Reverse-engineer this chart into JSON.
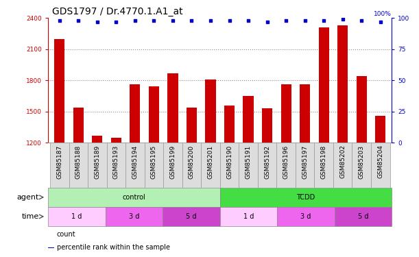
{
  "title": "GDS1797 / Dr.4770.1.A1_at",
  "samples": [
    "GSM85187",
    "GSM85188",
    "GSM85189",
    "GSM85193",
    "GSM85194",
    "GSM85195",
    "GSM85199",
    "GSM85200",
    "GSM85201",
    "GSM85190",
    "GSM85191",
    "GSM85192",
    "GSM85196",
    "GSM85197",
    "GSM85198",
    "GSM85202",
    "GSM85203",
    "GSM85204"
  ],
  "counts": [
    2200,
    1540,
    1270,
    1250,
    1760,
    1740,
    1870,
    1540,
    1810,
    1555,
    1650,
    1530,
    1760,
    1760,
    2310,
    2330,
    1840,
    1460
  ],
  "percentiles": [
    98,
    98,
    97,
    97,
    98,
    98,
    98,
    98,
    98,
    98,
    98,
    97,
    98,
    98,
    98,
    99,
    98,
    97
  ],
  "ylim_left": [
    1200,
    2400
  ],
  "ylim_right": [
    0,
    100
  ],
  "yticks_left": [
    1200,
    1500,
    1800,
    2100,
    2400
  ],
  "yticks_right": [
    0,
    25,
    50,
    75,
    100
  ],
  "bar_color": "#cc0000",
  "scatter_color": "#0000cc",
  "agent_groups": [
    {
      "label": "control",
      "start": 0,
      "end": 9,
      "color": "#b3f0b3"
    },
    {
      "label": "TCDD",
      "start": 9,
      "end": 18,
      "color": "#44dd44"
    }
  ],
  "time_groups": [
    {
      "label": "1 d",
      "start": 0,
      "end": 3,
      "color": "#ffccff"
    },
    {
      "label": "3 d",
      "start": 3,
      "end": 6,
      "color": "#ee66ee"
    },
    {
      "label": "5 d",
      "start": 6,
      "end": 9,
      "color": "#cc44cc"
    },
    {
      "label": "1 d",
      "start": 9,
      "end": 12,
      "color": "#ffccff"
    },
    {
      "label": "3 d",
      "start": 12,
      "end": 15,
      "color": "#ee66ee"
    },
    {
      "label": "5 d",
      "start": 15,
      "end": 18,
      "color": "#cc44cc"
    }
  ],
  "legend_items": [
    {
      "label": "count",
      "color": "#cc0000"
    },
    {
      "label": "percentile rank within the sample",
      "color": "#0000cc"
    }
  ],
  "title_fontsize": 10,
  "tick_fontsize": 6.5,
  "label_fontsize": 8,
  "bar_width": 0.55,
  "background_color": "#ffffff",
  "grid_color": "#888888",
  "axes_label_color_left": "#cc0000",
  "axes_label_color_right": "#0000cc",
  "xtick_bg": "#dddddd"
}
